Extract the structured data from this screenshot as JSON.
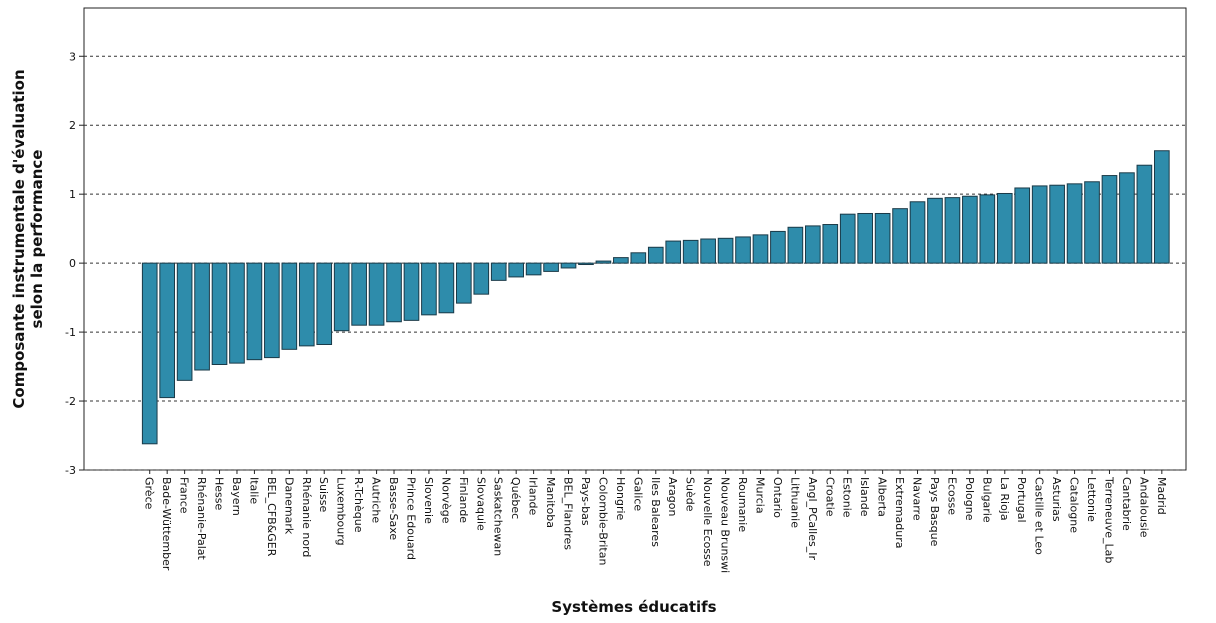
{
  "chart_data": {
    "type": "bar",
    "x_label": "Systèmes éducatifs",
    "y_label": [
      "Composante instrumentale d'évaluation",
      "selon la performance"
    ],
    "categories": [
      "Grèce",
      "Bade-Wüttember",
      "France",
      "Rhénanie-Palat",
      "Hesse",
      "Bayern",
      "Italie",
      "BEL_CFB&GER",
      "Danemark",
      "Rhénanie nord",
      "Suisse",
      "Luxembourg",
      "R-Tchèque",
      "Autriche",
      "Basse-Saxe",
      "Prince Edouard",
      "Slovenie",
      "Norvège",
      "Finlande",
      "Slovaquie",
      "Saskatchewan",
      "Québec",
      "Irlande",
      "Manitoba",
      "BEL_Flandres",
      "Pays-bas",
      "Colombie-Britan",
      "Hongrie",
      "Galice",
      "Iles Baleares",
      "Aragon",
      "Suède",
      "Nouvelle Ecosse",
      "Nouveau Brunswi",
      "Roumanie",
      "Murcia",
      "Ontario",
      "Lithuanie",
      "Angl_PCalles_Ir",
      "Croatie",
      "Estonie",
      "Islande",
      "Alberta",
      "Extremadura",
      "Navarre",
      "Pays Basque",
      "Ecosse",
      "Pologne",
      "Bulgarie",
      "La Rioja",
      "Portugal",
      "Castille et Leo",
      "Asturias",
      "Catalogne",
      "Lettonie",
      "Terreneuve_Lab",
      "Cantabrie",
      "Andalousie",
      "Madrid"
    ],
    "values": [
      -2.62,
      -1.95,
      -1.7,
      -1.55,
      -1.47,
      -1.45,
      -1.4,
      -1.37,
      -1.25,
      -1.2,
      -1.18,
      -0.98,
      -0.9,
      -0.9,
      -0.85,
      -0.83,
      -0.75,
      -0.72,
      -0.58,
      -0.45,
      -0.25,
      -0.2,
      -0.17,
      -0.12,
      -0.07,
      -0.02,
      0.03,
      0.08,
      0.15,
      0.23,
      0.32,
      0.33,
      0.35,
      0.36,
      0.38,
      0.41,
      0.46,
      0.52,
      0.54,
      0.56,
      0.71,
      0.72,
      0.72,
      0.79,
      0.89,
      0.94,
      0.95,
      0.97,
      0.99,
      1.01,
      1.09,
      1.12,
      1.13,
      1.15,
      1.18,
      1.27,
      1.31,
      1.42,
      1.63
    ],
    "color": "#2e8cab",
    "ylim": [
      -3,
      3.7
    ],
    "yticks": [
      -3,
      -2,
      -1,
      0,
      1,
      2,
      3
    ],
    "grid": true
  }
}
